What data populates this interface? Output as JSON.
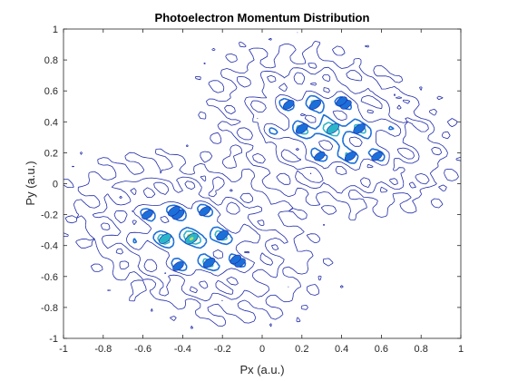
{
  "chart_data": {
    "type": "contour",
    "title": "Photoelectron Momentum Distribution",
    "xlabel": "Px (a.u.)",
    "ylabel": "Py (a.u.)",
    "xlim": [
      -1,
      1
    ],
    "ylim": [
      -1,
      1
    ],
    "xticks": [
      -1,
      -0.8,
      -0.6,
      -0.4,
      -0.2,
      0,
      0.2,
      0.4,
      0.6,
      0.8,
      1
    ],
    "yticks": [
      -1,
      -0.8,
      -0.6,
      -0.4,
      -0.2,
      0,
      0.2,
      0.4,
      0.6,
      0.8,
      1
    ],
    "xtick_labels": [
      "-1",
      "-0.8",
      "-0.6",
      "-0.4",
      "-0.2",
      "0",
      "0.2",
      "0.4",
      "0.6",
      "0.8",
      "1"
    ],
    "ytick_labels": [
      "-1",
      "-0.8",
      "-0.6",
      "-0.4",
      "-0.2",
      "0",
      "0.2",
      "0.4",
      "0.6",
      "0.8",
      "1"
    ],
    "grid": false,
    "colormap": "parula",
    "lobes": [
      {
        "center": [
          0.35,
          0.35
        ],
        "orientation_deg": -35,
        "extent": [
          0.45,
          0.3
        ]
      },
      {
        "center": [
          -0.35,
          -0.35
        ],
        "orientation_deg": -35,
        "extent": [
          0.45,
          0.3
        ]
      }
    ],
    "ridge_bands": [
      {
        "from": [
          -0.42,
          -0.18
        ],
        "to": [
          -0.08,
          -0.42
        ],
        "level": "high"
      },
      {
        "from": [
          0.05,
          0.3
        ],
        "to": [
          0.5,
          0.1
        ],
        "level": "high"
      },
      {
        "from": [
          -0.6,
          -0.05
        ],
        "to": [
          -0.25,
          -0.25
        ],
        "level": "medium"
      },
      {
        "from": [
          0.2,
          0.5
        ],
        "to": [
          0.65,
          0.25
        ],
        "level": "medium"
      }
    ],
    "colors": {
      "low": "#1f2aa8",
      "mid": "#1b6fd8",
      "high": "#2bb5c9",
      "peak": "#b8e05a"
    }
  }
}
